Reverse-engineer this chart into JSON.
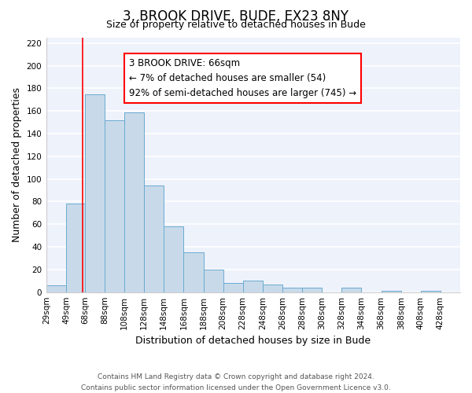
{
  "title": "3, BROOK DRIVE, BUDE, EX23 8NY",
  "subtitle": "Size of property relative to detached houses in Bude",
  "xlabel": "Distribution of detached houses by size in Bude",
  "ylabel": "Number of detached properties",
  "bar_left_edges": [
    29,
    49,
    68,
    88,
    108,
    128,
    148,
    168,
    188,
    208,
    228,
    248,
    268,
    288,
    308,
    328,
    348,
    368,
    388,
    408
  ],
  "bar_widths": [
    20,
    19,
    20,
    20,
    20,
    20,
    20,
    20,
    20,
    20,
    20,
    20,
    20,
    20,
    20,
    20,
    20,
    20,
    20,
    20
  ],
  "bar_heights": [
    6,
    78,
    175,
    152,
    159,
    94,
    58,
    35,
    20,
    8,
    10,
    7,
    4,
    4,
    0,
    4,
    0,
    1,
    0,
    1
  ],
  "bar_facecolor": "#c8daea",
  "bar_edgecolor": "#6baad0",
  "background_color": "#eef2fb",
  "grid_color": "#ffffff",
  "ylim": [
    0,
    225
  ],
  "yticks": [
    0,
    20,
    40,
    60,
    80,
    100,
    120,
    140,
    160,
    180,
    200,
    220
  ],
  "xtick_labels": [
    "29sqm",
    "49sqm",
    "68sqm",
    "88sqm",
    "108sqm",
    "128sqm",
    "148sqm",
    "168sqm",
    "188sqm",
    "208sqm",
    "228sqm",
    "248sqm",
    "268sqm",
    "288sqm",
    "308sqm",
    "328sqm",
    "348sqm",
    "368sqm",
    "388sqm",
    "408sqm",
    "428sqm"
  ],
  "xtick_positions": [
    29,
    49,
    68,
    88,
    108,
    128,
    148,
    168,
    188,
    208,
    228,
    248,
    268,
    288,
    308,
    328,
    348,
    368,
    388,
    408,
    428
  ],
  "xlim_left": 29,
  "xlim_right": 448,
  "property_line_x": 66,
  "annotation_title": "3 BROOK DRIVE: 66sqm",
  "annotation_line1": "← 7% of detached houses are smaller (54)",
  "annotation_line2": "92% of semi-detached houses are larger (745) →",
  "footer_line1": "Contains HM Land Registry data © Crown copyright and database right 2024.",
  "footer_line2": "Contains public sector information licensed under the Open Government Licence v3.0.",
  "title_fontsize": 12,
  "subtitle_fontsize": 9,
  "label_fontsize": 9,
  "tick_fontsize": 7.5,
  "annotation_fontsize": 8.5
}
